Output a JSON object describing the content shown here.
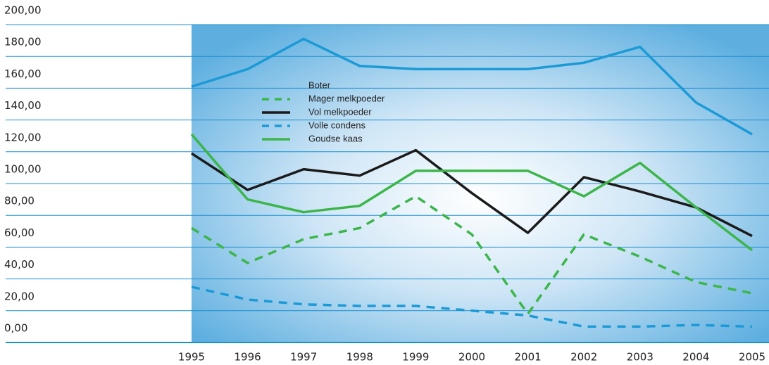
{
  "chart_data": {
    "type": "line",
    "x": [
      1995,
      1996,
      1997,
      1998,
      1999,
      2000,
      2001,
      2002,
      2003,
      2004,
      2005
    ],
    "xlim": [
      1995,
      2005
    ],
    "ylim": [
      0,
      200
    ],
    "yticks": [
      {
        "value": 0,
        "label": "0,00"
      },
      {
        "value": 20,
        "label": "20,00"
      },
      {
        "value": 40,
        "label": "40,00"
      },
      {
        "value": 60,
        "label": "60,00"
      },
      {
        "value": 80,
        "label": "80,00"
      },
      {
        "value": 100,
        "label": "100,00"
      },
      {
        "value": 120,
        "label": "120,00"
      },
      {
        "value": 140,
        "label": "140,00"
      },
      {
        "value": 160,
        "label": "160,00"
      },
      {
        "value": 180,
        "label": "180,00"
      },
      {
        "value": 200,
        "label": "200,00"
      }
    ],
    "grid": true,
    "series": [
      {
        "name": "Boter",
        "color": "#1c9ad6",
        "dash": false,
        "values": [
          161,
          172,
          191,
          174,
          172,
          172,
          172,
          176,
          186,
          151,
          131
        ]
      },
      {
        "name": "Mager melkpoeder",
        "color": "#3cb54a",
        "dash": true,
        "values": [
          72,
          50,
          65,
          72,
          92,
          68,
          18,
          68,
          54,
          38,
          31
        ]
      },
      {
        "name": "Vol melkpoeder",
        "color": "#1a1a1a",
        "dash": false,
        "values": [
          119,
          96,
          109,
          105,
          121,
          94,
          69,
          104,
          95,
          85,
          67
        ]
      },
      {
        "name": "Volle condens",
        "color": "#1c9ad6",
        "dash": true,
        "values": [
          35,
          27,
          24,
          23,
          23,
          20,
          17,
          10,
          10,
          11,
          10
        ]
      },
      {
        "name": "Goudse kaas",
        "color": "#3cb54a",
        "dash": false,
        "values": [
          131,
          90,
          82,
          86,
          108,
          108,
          108,
          92,
          113,
          85,
          58
        ]
      }
    ]
  }
}
